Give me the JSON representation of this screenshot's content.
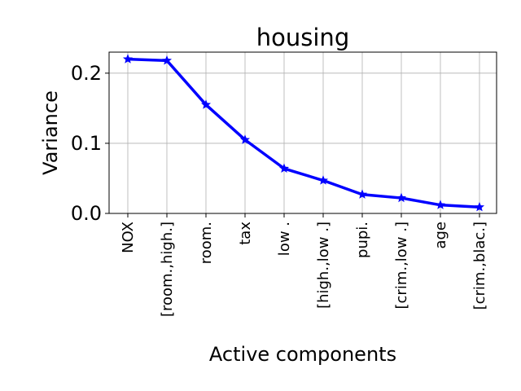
{
  "chart_data": {
    "type": "line",
    "title": "housing",
    "xlabel": "Active components",
    "ylabel": "Variance",
    "categories": [
      "NOX",
      "[room.,high.]",
      "room.",
      "tax",
      "low .",
      "[high.,low .]",
      "pupi.",
      "[crim.,low .]",
      "age",
      "[crim.,blac.]"
    ],
    "series": [
      {
        "values": [
          0.22,
          0.218,
          0.155,
          0.105,
          0.064,
          0.047,
          0.027,
          0.022,
          0.012,
          0.009
        ],
        "color": "#0000ff",
        "marker": "star"
      }
    ],
    "ylim": [
      0,
      0.23
    ],
    "yticks": [
      0.0,
      0.1,
      0.2
    ],
    "ytick_labels": [
      "0.0",
      "0.1",
      "0.2"
    ],
    "grid": true
  }
}
